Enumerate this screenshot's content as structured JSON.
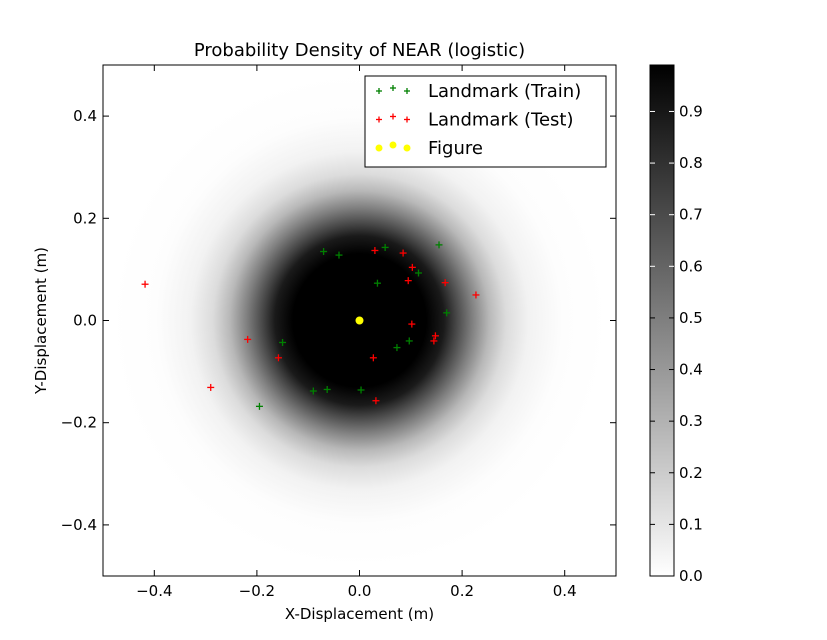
{
  "chart_data": {
    "type": "scatter",
    "title": "Probability Density of NEAR (logistic)",
    "xlabel": "X-Displacement (m)",
    "ylabel": "Y-Displacement (m)",
    "xlim": [
      -0.5,
      0.5
    ],
    "ylim": [
      -0.5,
      0.5
    ],
    "xticks": [
      -0.4,
      -0.2,
      0.0,
      0.2,
      0.4
    ],
    "xtick_labels": [
      "−0.4",
      "−0.2",
      "0.0",
      "0.2",
      "0.4"
    ],
    "yticks": [
      -0.4,
      -0.2,
      0.0,
      0.2,
      0.4
    ],
    "ytick_labels": [
      "−0.4",
      "−0.2",
      "0.0",
      "0.2",
      "0.4"
    ],
    "grid": false,
    "legend_position": "top-right",
    "heatmap": {
      "colormap": "gray_r",
      "center": [
        0.0,
        0.0
      ],
      "high_plateau_radius": 0.13,
      "half_value_radius": 0.22,
      "vmin": 0.0,
      "vmax": 0.99
    },
    "colorbar": {
      "range": [
        0.0,
        0.99
      ],
      "ticks": [
        0.0,
        0.1,
        0.2,
        0.3,
        0.4,
        0.5,
        0.6,
        0.7,
        0.8,
        0.9
      ],
      "tick_labels": [
        "0.0",
        "0.1",
        "0.2",
        "0.3",
        "0.4",
        "0.5",
        "0.6",
        "0.7",
        "0.8",
        "0.9"
      ]
    },
    "series": [
      {
        "name": "Landmark (Train)",
        "marker": "+",
        "color": "#008000",
        "points": [
          [
            -0.07,
            0.135
          ],
          [
            -0.04,
            0.128
          ],
          [
            0.05,
            0.143
          ],
          [
            0.155,
            0.148
          ],
          [
            0.035,
            0.073
          ],
          [
            0.115,
            0.093
          ],
          [
            0.17,
            0.015
          ],
          [
            -0.15,
            -0.043
          ],
          [
            0.073,
            -0.053
          ],
          [
            0.097,
            -0.04
          ],
          [
            -0.09,
            -0.138
          ],
          [
            -0.063,
            -0.135
          ],
          [
            0.003,
            -0.136
          ],
          [
            -0.195,
            -0.168
          ]
        ]
      },
      {
        "name": "Landmark (Test)",
        "marker": "+",
        "color": "#ff0000",
        "points": [
          [
            0.03,
            0.137
          ],
          [
            0.085,
            0.132
          ],
          [
            0.103,
            0.104
          ],
          [
            0.095,
            0.078
          ],
          [
            0.167,
            0.074
          ],
          [
            0.227,
            0.05
          ],
          [
            -0.418,
            0.071
          ],
          [
            -0.218,
            -0.037
          ],
          [
            0.102,
            -0.007
          ],
          [
            0.148,
            -0.03
          ],
          [
            0.145,
            -0.04
          ],
          [
            -0.158,
            -0.073
          ],
          [
            0.027,
            -0.073
          ],
          [
            -0.29,
            -0.131
          ],
          [
            0.032,
            -0.157
          ]
        ]
      },
      {
        "name": "Figure",
        "marker": "o",
        "color": "#ffff00",
        "points": [
          [
            0.0,
            0.0
          ]
        ]
      }
    ]
  }
}
